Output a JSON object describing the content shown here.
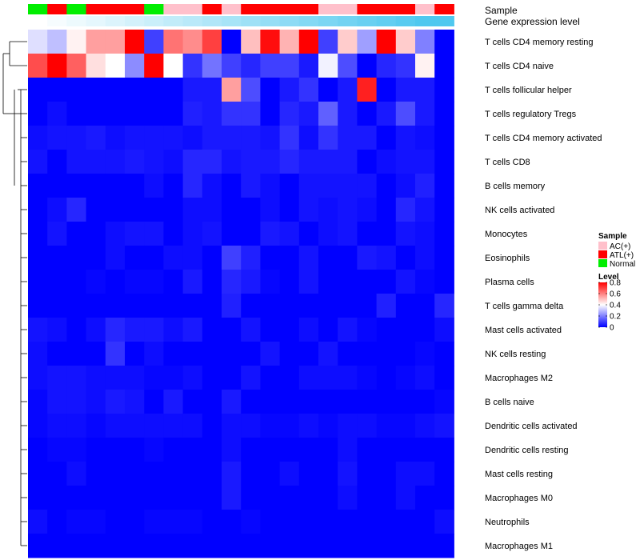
{
  "chart_data": {
    "type": "heatmap",
    "annotation_rows": [
      {
        "label": "Sample",
        "values": [
          "Normal",
          "ATL(+)",
          "Normal",
          "ATL(+)",
          "ATL(+)",
          "ATL(+)",
          "Normal",
          "AC(+)",
          "AC(+)",
          "ATL(+)",
          "AC(+)",
          "ATL(+)",
          "ATL(+)",
          "ATL(+)",
          "ATL(+)",
          "AC(+)",
          "AC(+)",
          "ATL(+)",
          "ATL(+)",
          "ATL(+)",
          "AC(+)",
          "ATL(+)"
        ]
      },
      {
        "label": "Gene expression level",
        "values": [
          0.0,
          0.05,
          0.1,
          0.15,
          0.2,
          0.25,
          0.3,
          0.35,
          0.4,
          0.45,
          0.5,
          0.55,
          0.6,
          0.65,
          0.7,
          0.75,
          0.8,
          0.85,
          0.9,
          0.95,
          1.0,
          1.0
        ]
      }
    ],
    "rows": [
      "T cells CD4 memory resting",
      "T cells CD4 naive",
      "T cells follicular helper",
      "T cells regulatory  Tregs",
      "T cells CD4 memory activated",
      "T cells CD8",
      "B cells memory",
      "NK cells activated",
      "Monocytes",
      "Eosinophils",
      "Plasma cells",
      "T cells gamma delta",
      "Mast cells activated",
      "NK cells resting",
      "Macrophages M2",
      "B cells naive",
      "Dendritic cells activated",
      "Dendritic cells resting",
      "Mast cells resting",
      "Macrophages M0",
      "Neutrophils",
      "Macrophages M1"
    ],
    "values": [
      [
        0.35,
        0.3,
        0.42,
        0.55,
        0.55,
        0.8,
        0.1,
        0.62,
        0.58,
        0.7,
        0.0,
        0.5,
        0.78,
        0.52,
        0.8,
        0.1,
        0.48,
        0.25,
        0.8,
        0.48,
        0.2,
        0.0
      ],
      [
        0.68,
        0.8,
        0.65,
        0.45,
        0.4,
        0.22,
        0.8,
        0.4,
        0.08,
        0.18,
        0.1,
        0.06,
        0.1,
        0.1,
        0.04,
        0.38,
        0.12,
        0.0,
        0.06,
        0.08,
        0.42,
        0.0
      ],
      [
        0.0,
        0.0,
        0.0,
        0.0,
        0.0,
        0.0,
        0.0,
        0.0,
        0.04,
        0.04,
        0.55,
        0.12,
        0.0,
        0.04,
        0.08,
        0.0,
        0.04,
        0.75,
        0.0,
        0.04,
        0.04,
        0.0
      ],
      [
        0.0,
        0.02,
        0.0,
        0.0,
        0.0,
        0.0,
        0.0,
        0.0,
        0.05,
        0.04,
        0.08,
        0.08,
        0.0,
        0.06,
        0.04,
        0.15,
        0.04,
        0.0,
        0.04,
        0.12,
        0.04,
        0.0
      ],
      [
        0.02,
        0.03,
        0.03,
        0.04,
        0.02,
        0.03,
        0.03,
        0.03,
        0.02,
        0.04,
        0.04,
        0.04,
        0.03,
        0.08,
        0.02,
        0.08,
        0.04,
        0.04,
        0.0,
        0.03,
        0.02,
        0.0
      ],
      [
        0.03,
        0.0,
        0.03,
        0.03,
        0.03,
        0.04,
        0.03,
        0.02,
        0.06,
        0.06,
        0.03,
        0.04,
        0.04,
        0.06,
        0.04,
        0.04,
        0.04,
        0.0,
        0.02,
        0.03,
        0.03,
        0.0
      ],
      [
        0.0,
        0.0,
        0.0,
        0.0,
        0.0,
        0.0,
        0.02,
        0.0,
        0.06,
        0.02,
        0.0,
        0.04,
        0.02,
        0.0,
        0.03,
        0.03,
        0.03,
        0.03,
        0.0,
        0.02,
        0.05,
        0.0
      ],
      [
        0.0,
        0.02,
        0.06,
        0.0,
        0.0,
        0.0,
        0.0,
        0.0,
        0.02,
        0.02,
        0.0,
        0.0,
        0.02,
        0.0,
        0.03,
        0.02,
        0.03,
        0.02,
        0.0,
        0.06,
        0.03,
        0.0
      ],
      [
        0.0,
        0.03,
        0.0,
        0.0,
        0.02,
        0.03,
        0.03,
        0.0,
        0.02,
        0.03,
        0.0,
        0.0,
        0.04,
        0.03,
        0.0,
        0.02,
        0.03,
        0.0,
        0.0,
        0.03,
        0.02,
        0.0
      ],
      [
        0.0,
        0.0,
        0.0,
        0.0,
        0.02,
        0.0,
        0.0,
        0.02,
        0.02,
        0.0,
        0.1,
        0.05,
        0.0,
        0.0,
        0.03,
        0.0,
        0.0,
        0.04,
        0.03,
        0.0,
        0.02,
        0.0
      ],
      [
        0.0,
        0.0,
        0.0,
        0.01,
        0.0,
        0.01,
        0.01,
        0.0,
        0.04,
        0.0,
        0.06,
        0.04,
        0.01,
        0.0,
        0.03,
        0.0,
        0.0,
        0.0,
        0.0,
        0.03,
        0.01,
        0.0
      ],
      [
        0.0,
        0.0,
        0.0,
        0.0,
        0.0,
        0.0,
        0.0,
        0.0,
        0.0,
        0.0,
        0.05,
        0.0,
        0.0,
        0.0,
        0.0,
        0.0,
        0.0,
        0.0,
        0.05,
        0.0,
        0.0,
        0.06
      ],
      [
        0.03,
        0.02,
        0.0,
        0.02,
        0.06,
        0.04,
        0.04,
        0.02,
        0.04,
        0.0,
        0.0,
        0.03,
        0.0,
        0.0,
        0.02,
        0.0,
        0.03,
        0.01,
        0.0,
        0.0,
        0.0,
        0.02
      ],
      [
        0.02,
        0.0,
        0.0,
        0.0,
        0.08,
        0.0,
        0.02,
        0.0,
        0.0,
        0.0,
        0.0,
        0.0,
        0.03,
        0.0,
        0.0,
        0.03,
        0.0,
        0.0,
        0.0,
        0.0,
        0.01,
        0.0
      ],
      [
        0.02,
        0.03,
        0.03,
        0.02,
        0.02,
        0.02,
        0.01,
        0.01,
        0.02,
        0.0,
        0.0,
        0.03,
        0.0,
        0.0,
        0.02,
        0.02,
        0.02,
        0.01,
        0.0,
        0.01,
        0.02,
        0.0
      ],
      [
        0.01,
        0.03,
        0.03,
        0.02,
        0.04,
        0.03,
        0.0,
        0.04,
        0.0,
        0.0,
        0.04,
        0.0,
        0.0,
        0.0,
        0.0,
        0.0,
        0.0,
        0.0,
        0.0,
        0.0,
        0.0,
        0.01
      ],
      [
        0.01,
        0.02,
        0.02,
        0.01,
        0.02,
        0.02,
        0.02,
        0.02,
        0.02,
        0.0,
        0.02,
        0.02,
        0.01,
        0.01,
        0.02,
        0.01,
        0.02,
        0.02,
        0.01,
        0.01,
        0.02,
        0.03
      ],
      [
        0.0,
        0.01,
        0.01,
        0.0,
        0.0,
        0.0,
        0.01,
        0.0,
        0.0,
        0.0,
        0.02,
        0.0,
        0.0,
        0.0,
        0.0,
        0.0,
        0.02,
        0.0,
        0.0,
        0.0,
        0.0,
        0.0
      ],
      [
        0.0,
        0.0,
        0.02,
        0.0,
        0.0,
        0.0,
        0.0,
        0.0,
        0.0,
        0.0,
        0.04,
        0.0,
        0.0,
        0.02,
        0.0,
        0.0,
        0.03,
        0.0,
        0.0,
        0.02,
        0.02,
        0.0
      ],
      [
        0.0,
        0.0,
        0.0,
        0.0,
        0.0,
        0.0,
        0.0,
        0.0,
        0.0,
        0.0,
        0.04,
        0.0,
        0.0,
        0.0,
        0.0,
        0.0,
        0.02,
        0.0,
        0.0,
        0.02,
        0.0,
        0.0
      ],
      [
        0.02,
        0.0,
        0.01,
        0.01,
        0.0,
        0.0,
        0.01,
        0.01,
        0.01,
        0.0,
        0.0,
        0.01,
        0.0,
        0.0,
        0.0,
        0.0,
        0.0,
        0.0,
        0.0,
        0.0,
        0.0,
        0.02
      ],
      [
        0.0,
        0.0,
        0.0,
        0.0,
        0.0,
        0.0,
        0.0,
        0.0,
        0.0,
        0.0,
        0.0,
        0.0,
        0.0,
        0.0,
        0.0,
        0.0,
        0.0,
        0.0,
        0.0,
        0.0,
        0.0,
        0.0
      ]
    ],
    "legend": {
      "sample_title": "Sample",
      "sample_items": [
        {
          "label": "AC(+)",
          "color": "#FFC0CB"
        },
        {
          "label": "ATL(+)",
          "color": "#FF0000"
        },
        {
          "label": "Normal",
          "color": "#00EE00"
        }
      ],
      "level_title": "Level",
      "level_ticks": [
        "0.8",
        "0.6",
        "0.4",
        "0.2",
        "0"
      ],
      "level_tick_values": [
        0.8,
        0.6,
        0.4,
        0.2,
        0
      ],
      "level_range": [
        0,
        0.8
      ]
    },
    "colors": {
      "low": "#0000FF",
      "mid": "#FFFFFF",
      "high": "#FF0000",
      "gene_low": "#FFFFFF",
      "gene_high": "#4FC8EF"
    }
  }
}
